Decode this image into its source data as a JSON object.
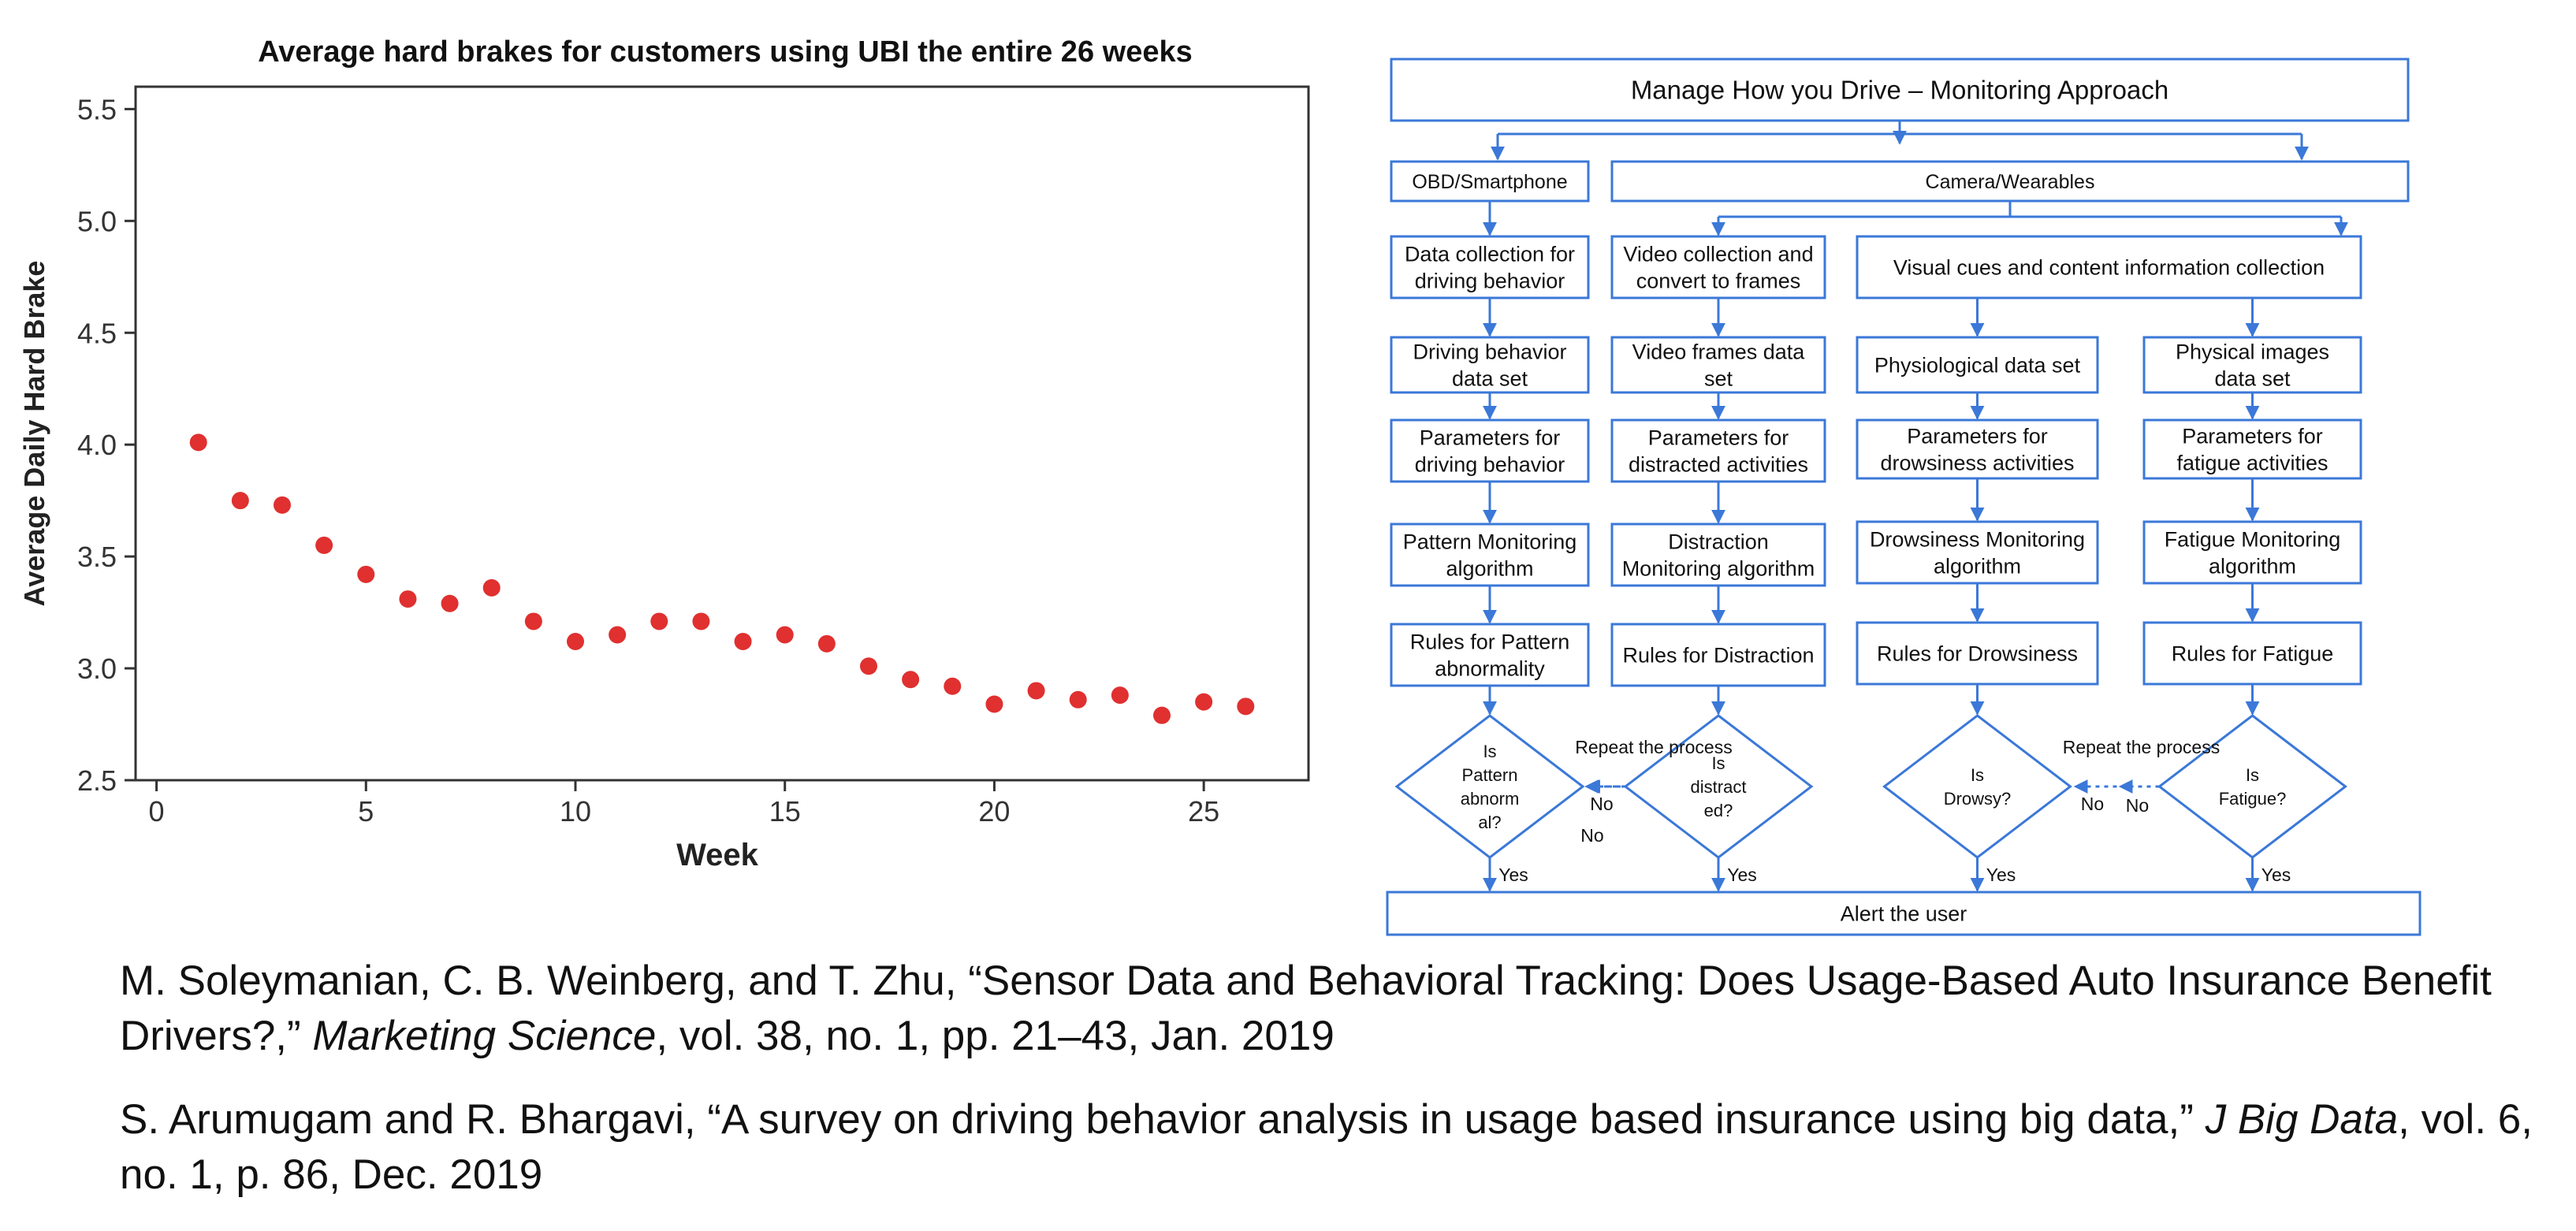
{
  "chart_data": {
    "type": "scatter",
    "title": "Average hard brakes for customers using UBI the entire 26 weeks",
    "xlabel": "Week",
    "ylabel": "Average Daily Hard Brake",
    "xlim": [
      -0.5,
      27.5
    ],
    "ylim": [
      2.5,
      5.6
    ],
    "xticks": [
      "0",
      "5",
      "10",
      "15",
      "20",
      "25"
    ],
    "yticks": [
      "2.5",
      "3.0",
      "3.5",
      "4.0",
      "4.5",
      "5.0",
      "5.5"
    ],
    "x": [
      1,
      2,
      3,
      4,
      5,
      6,
      7,
      8,
      9,
      10,
      11,
      12,
      13,
      14,
      15,
      16,
      17,
      18,
      19,
      20,
      21,
      22,
      23,
      24,
      25,
      26
    ],
    "y": [
      4.01,
      3.75,
      3.73,
      3.55,
      3.42,
      3.31,
      3.29,
      3.36,
      3.21,
      3.12,
      3.15,
      3.21,
      3.21,
      3.12,
      3.15,
      3.11,
      3.01,
      2.95,
      2.92,
      2.84,
      2.9,
      2.86,
      2.88,
      2.79,
      2.85,
      2.83
    ],
    "marker_color": "#e03030",
    "grid": false,
    "legend": "none"
  },
  "flowchart": {
    "title": "Manage How you Drive – Monitoring Approach",
    "branch_obd": "OBD/Smartphone",
    "branch_camera": "Camera/Wearables",
    "col1": [
      "Data collection for|driving behavior",
      "Driving behavior|data set",
      "Parameters for|driving behavior",
      "Pattern Monitoring|algorithm",
      "Rules for Pattern|abnormality"
    ],
    "col2": [
      "Video collection and|convert to frames",
      "Video frames data|set",
      "Parameters for|distracted activities",
      "Distraction|Monitoring algorithm",
      "Rules for Distraction"
    ],
    "visual_cues": "Visual cues and content information collection",
    "col3": [
      "Physiological data set",
      "Parameters for|drowsiness activities",
      "Drowsiness Monitoring|algorithm",
      "Rules for Drowsiness"
    ],
    "col4": [
      "Physical images|data set",
      "Parameters for|fatigue activities",
      "Fatigue Monitoring|algorithm",
      "Rules for Fatigue"
    ],
    "diamonds": [
      "Is|Pattern|abnorm|al?",
      "Is|distract|ed?",
      "Is|Drowsy?",
      "Is|Fatigue?"
    ],
    "repeat": "Repeat the process",
    "no": "No",
    "yes": "Yes",
    "alert": "Alert the user",
    "accent_color": "#3b78d8"
  },
  "references": [
    {
      "before": "M. Soleymanian, C. B. Weinberg, and T. Zhu, “Sensor Data and Behavioral Tracking: Does Usage-Based Auto Insurance Benefit Drivers?,” ",
      "journal": "Marketing Science",
      "after": ", vol. 38, no. 1, pp. 21–43, Jan. 2019"
    },
    {
      "before": "S. Arumugam and R. Bhargavi, “A survey on driving behavior analysis in usage based insurance using big data,” ",
      "journal": "J Big Data",
      "after": ", vol. 6, no. 1, p. 86, Dec. 2019"
    }
  ]
}
